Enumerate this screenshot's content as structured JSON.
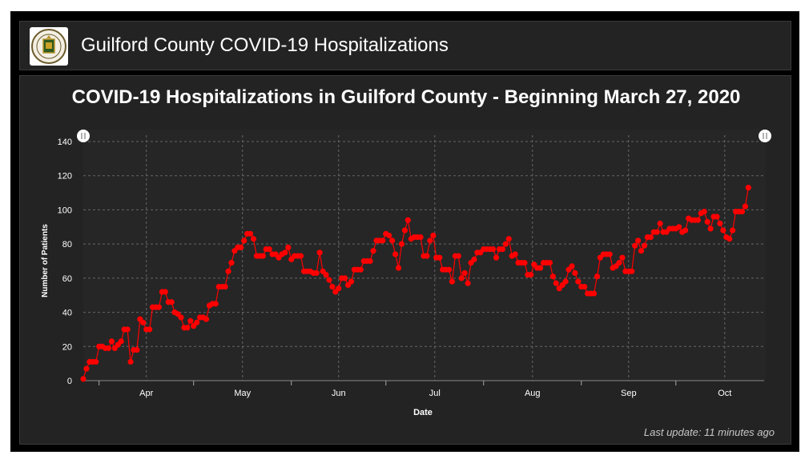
{
  "header": {
    "title": "Guilford County COVID-19 Hospitalizations",
    "logo_icon": "county-seal-icon"
  },
  "footer": {
    "last_update": "Last update: 11 minutes ago"
  },
  "colors": {
    "series": "#ff0000",
    "background": "#232323",
    "grid": "#666666"
  },
  "chart_data": {
    "type": "line",
    "title": "COVID-19 Hospitalizations in Guilford County - Beginning March 27, 2020",
    "xlabel": "Date",
    "ylabel": "Number of Patients",
    "ylim": [
      0,
      140
    ],
    "yticks": [
      0,
      20,
      40,
      60,
      80,
      100,
      120,
      140
    ],
    "xlim": [
      "2020-03-27",
      "2020-10-29"
    ],
    "xticks": [
      {
        "label": "Apr",
        "date": "2020-04-01"
      },
      {
        "label": "May",
        "date": "2020-05-01"
      },
      {
        "label": "Jun",
        "date": "2020-06-01"
      },
      {
        "label": "Jul",
        "date": "2020-07-01"
      },
      {
        "label": "Aug",
        "date": "2020-08-01"
      },
      {
        "label": "Sep",
        "date": "2020-09-01"
      },
      {
        "label": "Oct",
        "date": "2020-10-01"
      }
    ],
    "grid": true,
    "legend": false,
    "series": [
      {
        "start": "2020-03-27",
        "values": [
          1,
          7,
          11,
          11,
          11,
          20,
          20,
          19,
          19,
          23,
          19,
          21,
          23,
          30,
          30,
          11,
          18,
          18,
          36,
          34,
          30,
          30,
          43,
          43,
          43,
          52,
          52,
          46,
          46,
          40,
          39,
          37,
          31,
          31,
          35,
          32,
          34,
          37,
          37,
          36,
          44,
          45,
          45,
          55,
          55,
          55,
          64,
          69,
          76,
          78,
          78,
          82,
          86,
          86,
          83,
          73,
          73,
          73,
          77,
          77,
          74,
          74,
          72,
          74,
          75,
          78,
          71,
          73,
          73,
          73,
          64,
          64,
          64,
          63,
          63,
          75,
          64,
          62,
          59,
          55,
          52,
          54,
          60,
          60,
          56,
          58,
          65,
          65,
          65,
          70,
          70,
          70,
          76,
          82,
          82,
          82,
          86,
          85,
          82,
          74,
          66,
          80,
          88,
          94,
          83,
          84,
          84,
          84,
          73,
          73,
          82,
          85,
          72,
          72,
          65,
          65,
          65,
          58,
          73,
          73,
          60,
          63,
          57,
          69,
          71,
          75,
          75,
          77,
          77,
          77,
          77,
          72,
          77,
          77,
          80,
          83,
          73,
          74,
          69,
          69,
          69,
          62,
          62,
          68,
          66,
          66,
          69,
          69,
          69,
          61,
          57,
          54,
          56,
          58,
          65,
          67,
          63,
          58,
          55,
          55,
          51,
          51,
          51,
          61,
          72,
          74,
          74,
          74,
          66,
          67,
          69,
          72,
          64,
          64,
          64,
          79,
          82,
          76,
          79,
          84,
          84,
          87,
          87,
          92,
          87,
          87,
          89,
          89,
          89,
          90,
          87,
          88,
          95,
          94,
          94,
          94,
          98,
          99,
          93,
          89,
          96,
          96,
          92,
          88,
          84,
          83,
          88,
          99,
          99,
          99,
          102,
          113
        ]
      }
    ]
  }
}
